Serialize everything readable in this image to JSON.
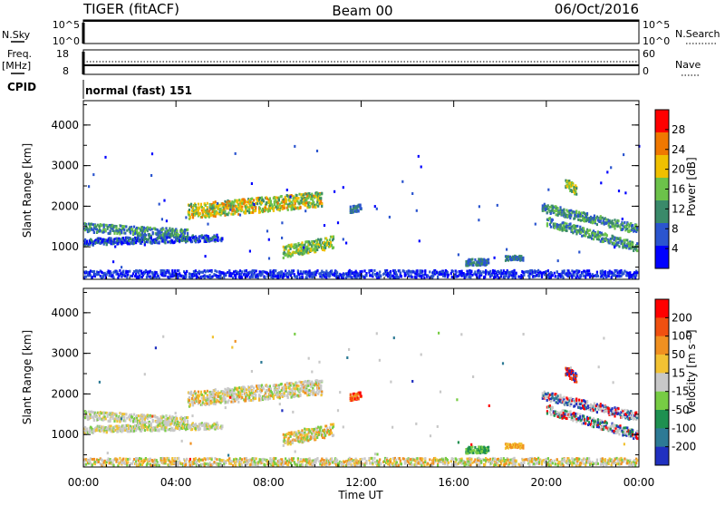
{
  "header": {
    "station": "TIGER (fitACF)",
    "beam": "Beam 00",
    "date": "06/Oct/2016"
  },
  "nsky": {
    "label": "N.Sky",
    "ticks": [
      "10^5",
      "10^0"
    ],
    "right_ticks": [
      "10^5",
      "10^0"
    ],
    "right_label": "N.Search"
  },
  "freq": {
    "label_line1": "Freq.",
    "label_line2": "[MHz]",
    "ticks": [
      "18",
      "8"
    ],
    "right_ticks": [
      "60",
      "0"
    ],
    "right_label": "Nave"
  },
  "cpid": {
    "label": "CPID",
    "value": "normal (fast) 151"
  },
  "chart_data": [
    {
      "type": "heatmap",
      "quantity": "Power",
      "ylabel": "Slant Range [km]",
      "ylim": [
        200,
        4600
      ],
      "yticks": [
        "4000",
        "3000",
        "2000",
        "1000"
      ],
      "colorbar_label": "Power [dB]",
      "colorbar_ticks": [
        "28",
        "24",
        "20",
        "16",
        "12",
        "8",
        "4"
      ],
      "colorbar_range": [
        0,
        32
      ],
      "colors": [
        "#0000ff",
        "#2b55cf",
        "#3a8a6a",
        "#6cc24a",
        "#f0c000",
        "#f07800",
        "#ff0000"
      ]
    },
    {
      "type": "heatmap",
      "quantity": "Velocity",
      "ylabel": "Slant Range [km]",
      "ylim": [
        200,
        4600
      ],
      "yticks": [
        "4000",
        "3000",
        "2000",
        "1000"
      ],
      "colorbar_label": "Velocity [m s⁻¹]",
      "colorbar_ticks": [
        "200",
        "100",
        "50",
        "15",
        "-15",
        "-50",
        "-100",
        "-200"
      ],
      "colors": [
        "#2030c0",
        "#2d7a95",
        "#1e9050",
        "#77cc44",
        "#c8c8c8",
        "#f2c233",
        "#f09020",
        "#f05010",
        "#ff0000"
      ]
    }
  ],
  "xaxis": {
    "label": "Time UT",
    "ticks": [
      "00:00",
      "04:00",
      "08:00",
      "12:00",
      "16:00",
      "20:00",
      "00:00"
    ],
    "range_hours": [
      0,
      24
    ]
  }
}
